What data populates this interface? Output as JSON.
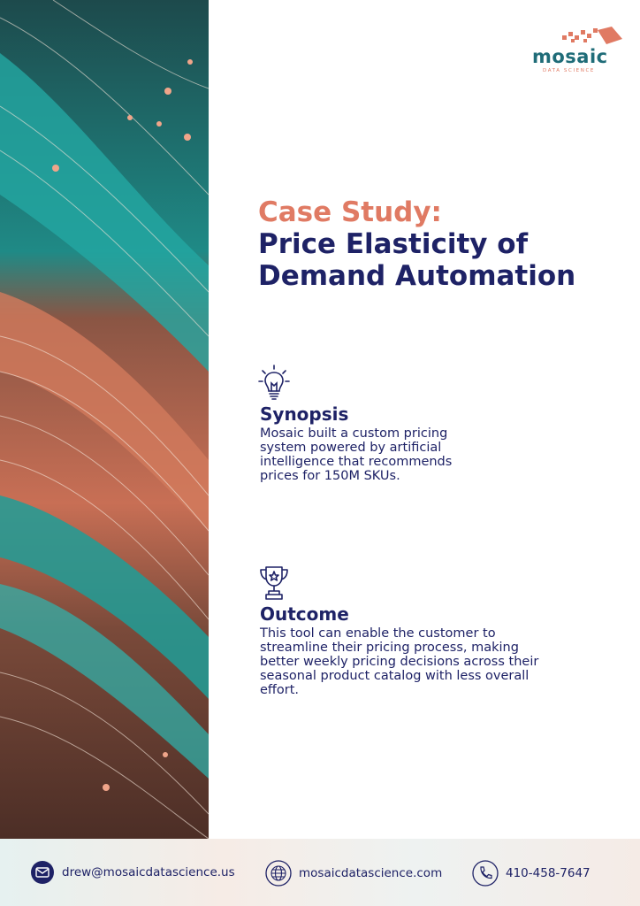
{
  "logo": {
    "name": "mosaic",
    "tagline": "DATA SCIENCE"
  },
  "header": {
    "label": "Case Study:",
    "title": "Price Elasticity of Demand Automation"
  },
  "sections": [
    {
      "heading": "Synopsis",
      "body": "Mosaic built a custom pricing system powered by artificial intelligence that recommends prices for 150M SKUs."
    },
    {
      "heading": "Outcome",
      "body": "This tool can enable the customer to streamline their pricing process, making better weekly pricing decisions across their seasonal product catalog with less overall effort."
    }
  ],
  "footer": {
    "email": "drew@mosaicdatascience.us",
    "website": "mosaicdatascience.com",
    "phone": "410-458-7647"
  }
}
